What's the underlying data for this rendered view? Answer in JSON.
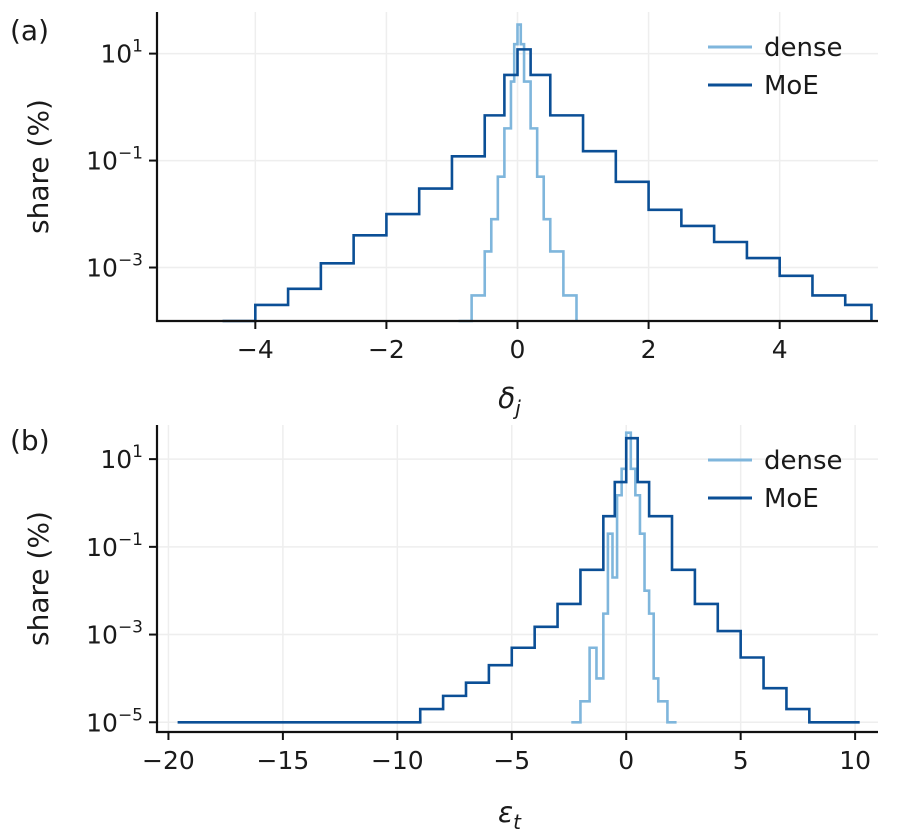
{
  "chart_data": [
    {
      "panel": "(a)",
      "type": "line",
      "xlabel": "δ",
      "xlabel_sub": "j",
      "ylabel": "share (%)",
      "xlim": [
        -5.5,
        5.5
      ],
      "ylim": [
        0.0001,
        60
      ],
      "log_y": true,
      "grid": true,
      "legend_position": "top-right",
      "x_ticks": [
        -4,
        -2,
        0,
        2,
        4
      ],
      "x_tick_labels": [
        "−4",
        "−2",
        "0",
        "2",
        "4"
      ],
      "y_ticks": [
        0.001,
        0.1,
        10
      ],
      "y_tick_labels": [
        {
          "base": "10",
          "exp": "−3"
        },
        {
          "base": "10",
          "exp": "−1"
        },
        {
          "base": "10",
          "exp": "1"
        }
      ],
      "series": [
        {
          "name": "dense",
          "color": "#7fb6dc",
          "x": [
            -0.9,
            -0.7,
            -0.5,
            -0.4,
            -0.3,
            -0.2,
            -0.1,
            -0.05,
            0.0,
            0.05,
            0.1,
            0.2,
            0.3,
            0.4,
            0.5,
            0.7,
            0.9
          ],
          "y": [
            0.0001,
            0.0003,
            0.002,
            0.008,
            0.05,
            0.4,
            3,
            15,
            35,
            15,
            3,
            0.4,
            0.05,
            0.008,
            0.002,
            0.0003,
            0.0001
          ]
        },
        {
          "name": "MoE",
          "color": "#0b4f96",
          "x": [
            -4.5,
            -4.0,
            -3.5,
            -3.0,
            -2.5,
            -2.0,
            -1.5,
            -1.0,
            -0.5,
            -0.2,
            0.0,
            0.2,
            0.5,
            1.0,
            1.5,
            2.0,
            2.5,
            3.0,
            3.5,
            4.0,
            4.5,
            5.0,
            5.4
          ],
          "y": [
            0.0001,
            0.0002,
            0.0004,
            0.0012,
            0.004,
            0.01,
            0.03,
            0.12,
            0.7,
            4,
            12,
            4,
            0.7,
            0.15,
            0.04,
            0.012,
            0.006,
            0.003,
            0.0015,
            0.0007,
            0.0003,
            0.0002,
            0.0001
          ]
        }
      ]
    },
    {
      "panel": "(b)",
      "type": "line",
      "xlabel": "ε",
      "xlabel_sub": "t",
      "ylabel": "share (%)",
      "xlim": [
        -20.5,
        11
      ],
      "ylim": [
        6e-06,
        60
      ],
      "log_y": true,
      "grid": true,
      "legend_position": "top-right",
      "x_ticks": [
        -20,
        -15,
        -10,
        -5,
        0,
        5,
        10
      ],
      "x_tick_labels": [
        "−20",
        "−15",
        "−10",
        "−5",
        "0",
        "5",
        "10"
      ],
      "y_ticks": [
        1e-05,
        0.001,
        0.1,
        10
      ],
      "y_tick_labels": [
        {
          "base": "10",
          "exp": "−5"
        },
        {
          "base": "10",
          "exp": "−3"
        },
        {
          "base": "10",
          "exp": "−1"
        },
        {
          "base": "10",
          "exp": "1"
        }
      ],
      "series": [
        {
          "name": "dense",
          "color": "#7fb6dc",
          "x": [
            -2.4,
            -2.0,
            -1.6,
            -1.3,
            -1.0,
            -0.8,
            -0.6,
            -0.4,
            -0.2,
            0.0,
            0.2,
            0.4,
            0.6,
            0.8,
            1.0,
            1.2,
            1.4,
            1.8,
            2.2
          ],
          "y": [
            1e-05,
            3e-05,
            0.0005,
            0.0001,
            0.003,
            0.2,
            0.02,
            1.5,
            6,
            40,
            6,
            1.5,
            0.2,
            0.01,
            0.003,
            0.0001,
            3e-05,
            1e-05,
            1e-05
          ]
        },
        {
          "name": "MoE",
          "color": "#0b4f96",
          "x": [
            -19.6,
            -18.8,
            -13.0,
            -12.0,
            -10.0,
            -9.0,
            -8.0,
            -7.0,
            -6.0,
            -5.0,
            -4.0,
            -3.0,
            -2.0,
            -1.0,
            -0.5,
            0.0,
            0.5,
            1.0,
            2.0,
            3.0,
            4.0,
            5.0,
            6.0,
            7.0,
            8.0,
            9.0,
            10.2
          ],
          "y": [
            1e-05,
            1e-05,
            1e-05,
            1e-05,
            1e-05,
            2e-05,
            4e-05,
            8e-05,
            0.0002,
            0.0005,
            0.0015,
            0.005,
            0.03,
            0.5,
            3,
            30,
            3,
            0.5,
            0.03,
            0.005,
            0.0012,
            0.0003,
            6e-05,
            2e-05,
            1e-05,
            1e-05,
            1e-05
          ]
        }
      ]
    }
  ]
}
